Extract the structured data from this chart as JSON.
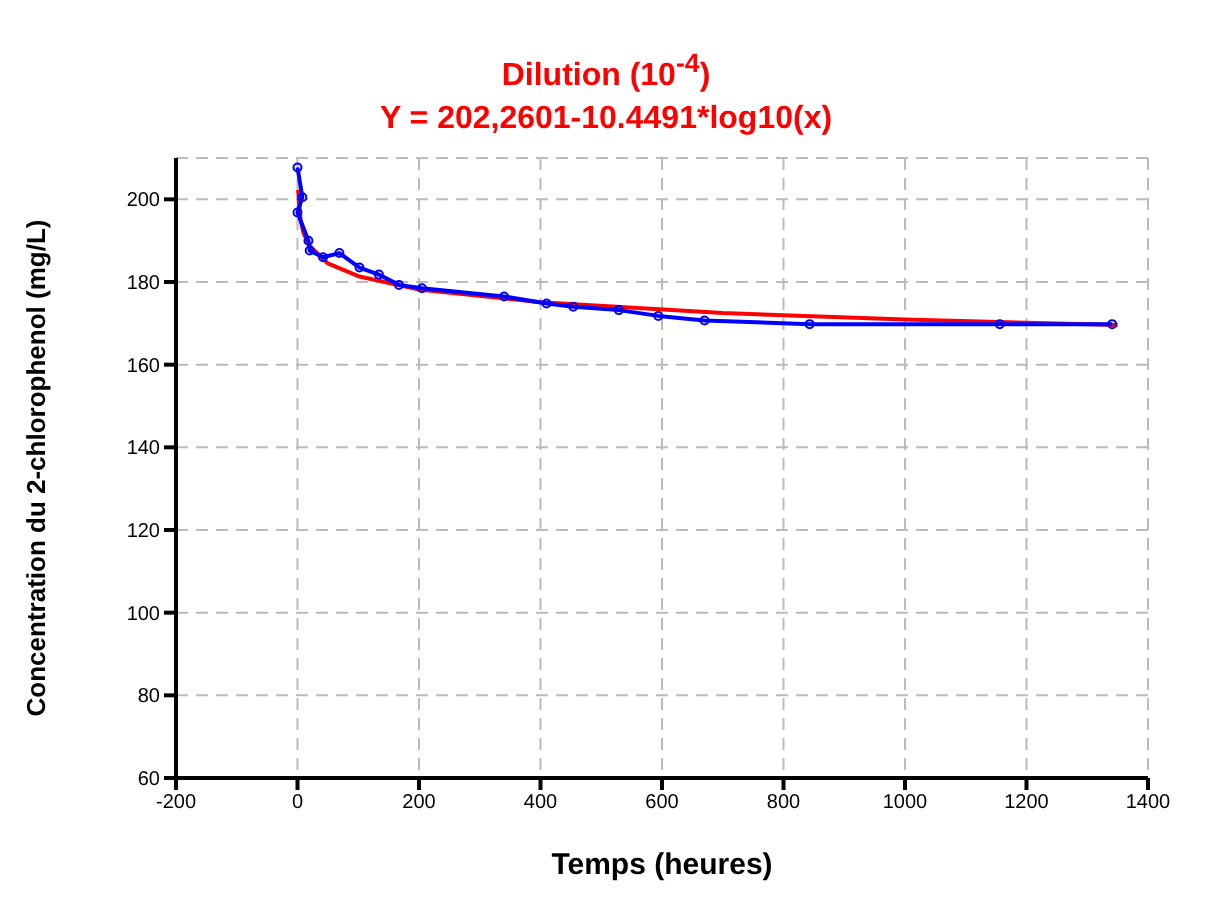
{
  "chart_data": {
    "type": "line",
    "title": "Dilution (10$^{-4}$)",
    "subtitle": "Y =  202,2601-10.4491*log10(x)",
    "xlabel": "Temps (heures)",
    "ylabel": "Concentration du 2-chlorophenol (mg/L)",
    "xlim": [
      -200,
      1400
    ],
    "xticks": [
      -200,
      0,
      200,
      400,
      600,
      800,
      1000,
      1200,
      1400
    ],
    "ylim": [
      60,
      210
    ],
    "yticks": [
      60,
      80,
      100,
      120,
      140,
      160,
      180,
      200
    ],
    "grid": true,
    "series": [
      {
        "color": "#ff0000",
        "marker": "none",
        "x": [
          1,
          5,
          10,
          20,
          50,
          100,
          200,
          400,
          700,
          1000,
          1350
        ],
        "values": [
          202.3,
          195.0,
          191.8,
          188.7,
          184.5,
          181.4,
          178.2,
          175.1,
          172.5,
          170.9,
          169.6
        ]
      },
      {
        "color": "#0000ff",
        "marker": "circle",
        "x": [
          0,
          8,
          0,
          18,
          20,
          42,
          69,
          102,
          134,
          167,
          205,
          340,
          410,
          454,
          529,
          594,
          670,
          843,
          1156,
          1341
        ],
        "values": [
          207.7,
          200.5,
          196.8,
          190,
          187.6,
          186,
          187,
          183.5,
          181.8,
          179.3,
          178.5,
          176.5,
          174.8,
          174,
          173.2,
          171.8,
          170.7,
          169.8,
          169.8,
          169.8
        ]
      }
    ]
  }
}
